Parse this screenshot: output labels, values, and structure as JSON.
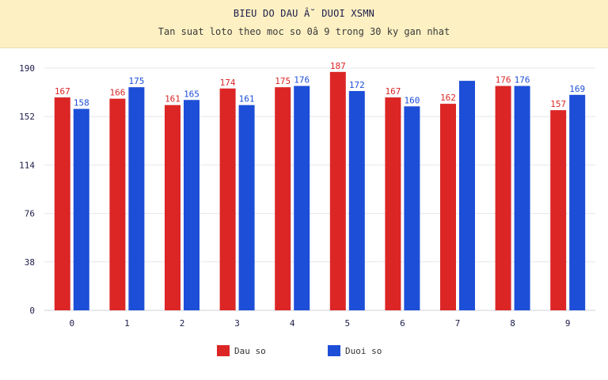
{
  "header": {
    "title": "BIEU DO DAU Â˘ DUOI XSMN",
    "subtitle": "Tan suat loto theo moc so 0â  9 trong 30 ky gan nhat"
  },
  "colors": {
    "header_bg": "#fdf0c2",
    "dau": "#dc2626",
    "duoi": "#1d4ed8",
    "grid": "#e5e7eb",
    "axis_text": "#1c1c4a"
  },
  "legend": {
    "dau_label": "Dau so",
    "duoi_label": "Duoi so"
  },
  "chart_data": {
    "type": "bar",
    "categories": [
      "0",
      "1",
      "2",
      "3",
      "4",
      "5",
      "6",
      "7",
      "8",
      "9"
    ],
    "series": [
      {
        "name": "Dau so",
        "values": [
          167,
          166,
          161,
          174,
          175,
          187,
          167,
          162,
          176,
          157
        ],
        "labels": [
          "167",
          "166",
          "161",
          "174",
          "175",
          "187",
          "167",
          "162",
          "176",
          "157"
        ]
      },
      {
        "name": "Duoi so",
        "values": [
          158,
          175,
          165,
          161,
          176,
          172,
          160,
          180,
          176,
          169
        ],
        "labels": [
          "158",
          "175",
          "165",
          "161",
          "176",
          "172",
          "160",
          "",
          "176",
          "169"
        ]
      }
    ],
    "yticks": [
      "0",
      "38",
      "76",
      "114",
      "152",
      "190"
    ],
    "ylim": [
      0,
      190
    ],
    "grid": true,
    "legend_position": "bottom"
  }
}
